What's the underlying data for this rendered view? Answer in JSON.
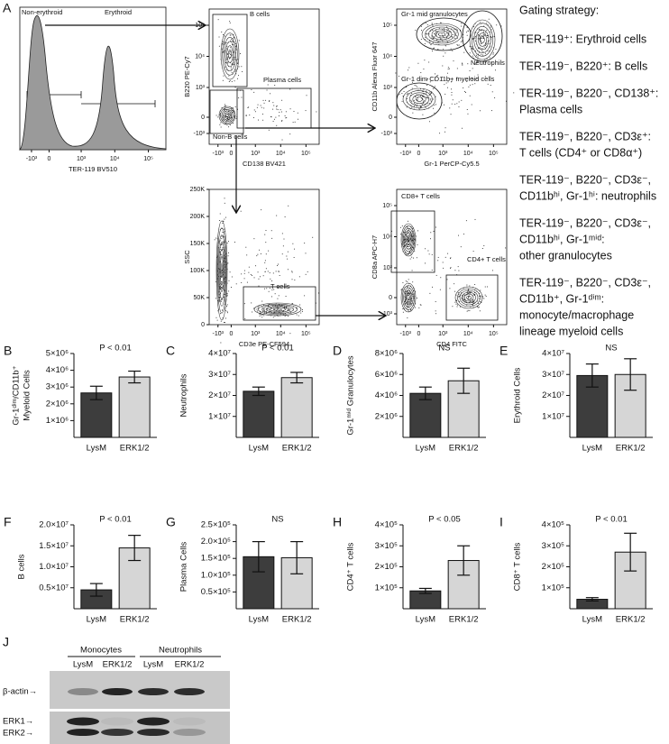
{
  "panel_a": {
    "label": "A",
    "histogram": {
      "xlabel": "TER-119 BV510",
      "gates": [
        "Non-erythroid",
        "Erythroid"
      ],
      "xticks": [
        "-10³",
        "0",
        "10³",
        "10⁴",
        "10⁵"
      ]
    },
    "b_cell_plot": {
      "xlabel": "CD138 BV421",
      "ylabel": "B220 PE-Cy7",
      "gates": [
        "B cells",
        "Plasma cells",
        "Non-B cells"
      ],
      "xticks": [
        "-10³",
        "0",
        "10³",
        "10⁴",
        "10⁵"
      ],
      "yticks": [
        "-10³",
        "0",
        "10³",
        "10⁴",
        "10⁵"
      ]
    },
    "myeloid_plot": {
      "xlabel": "Gr-1 PerCP-Cy5.5",
      "ylabel": "CD11b Alexa Fluor 647",
      "gates": [
        "Gr-1 mid granulocytes",
        "Neutrophils",
        "Gr-1 dim CD11b+ myeloid cells"
      ],
      "xticks": [
        "-10³",
        "0",
        "10³",
        "10⁴",
        "10⁵"
      ],
      "yticks": [
        "-10³",
        "0",
        "10³",
        "10⁴",
        "10⁵"
      ]
    },
    "t_cell_plot": {
      "xlabel": "CD3e PE-CF594",
      "ylabel": "SSC",
      "gates": [
        "T cells"
      ],
      "xticks": [
        "-10³",
        "0",
        "10³",
        "10⁴",
        "10⁵"
      ],
      "yticks": [
        "0",
        "50K",
        "100K",
        "150K",
        "200K",
        "250K"
      ]
    },
    "cd4_cd8_plot": {
      "xlabel": "CD4 FITC",
      "ylabel": "CD8a APC-H7",
      "gates": [
        "CD8+ T cells",
        "CD4+ T cells"
      ],
      "xticks": [
        "-10³",
        "0",
        "10³",
        "10⁴",
        "10⁵"
      ],
      "yticks": [
        "-10³",
        "0",
        "10³",
        "10⁴",
        "10⁵"
      ]
    },
    "gating_strategy": {
      "title": "Gating strategy:",
      "items": [
        [
          "TER-119⁺: Erythroid cells"
        ],
        [
          "TER-119⁻, B220⁺: B cells"
        ],
        [
          "TER-119⁻, B220⁻, CD138⁺:",
          "Plasma cells"
        ],
        [
          "TER-119⁻, B220⁻, CD3ε⁺:",
          "T cells (CD4⁺ or CD8α⁺)"
        ],
        [
          "TER-119⁻, B220⁻, CD3ε⁻,",
          "CD11bʰⁱ, Gr-1ʰⁱ: neutrophils"
        ],
        [
          "TER-119⁻, B220⁻, CD3ε⁻,",
          "CD11bʰⁱ, Gr-1ᵐⁱᵈ:",
          "other granulocytes"
        ],
        [
          "TER-119⁻, B220⁻, CD3ε⁻,",
          "CD11b⁺, Gr-1ᵈⁱᵐ:",
          "monocyte/macrophage",
          "lineage myeloid cells"
        ]
      ]
    }
  },
  "chart_data": [
    {
      "type": "bar",
      "label": "B",
      "ylabel": [
        "Gr-1ᵈⁱᵐ/CD11b⁺",
        "Myeloid Cells"
      ],
      "annotation": "P < 0.01",
      "categories": [
        "LysM",
        "ERK1/2"
      ],
      "values": [
        2650000,
        3600000
      ],
      "errors": [
        400000,
        350000
      ],
      "colors": [
        "#3d3d3d",
        "#d6d6d6"
      ],
      "ylim": [
        0,
        5000000
      ],
      "yticks": [
        {
          "value": 1000000,
          "label": "1×10⁶"
        },
        {
          "value": 2000000,
          "label": "2×10⁶"
        },
        {
          "value": 3000000,
          "label": "3×10⁶"
        },
        {
          "value": 4000000,
          "label": "4×10⁶"
        },
        {
          "value": 5000000,
          "label": "5×10⁶"
        }
      ]
    },
    {
      "type": "bar",
      "label": "C",
      "ylabel": [
        "Neutrophils"
      ],
      "annotation": "P < 0.01",
      "categories": [
        "LysM",
        "ERK1/2"
      ],
      "values": [
        22000000,
        28500000
      ],
      "errors": [
        2000000,
        2500000
      ],
      "colors": [
        "#3d3d3d",
        "#d6d6d6"
      ],
      "ylim": [
        0,
        40000000
      ],
      "yticks": [
        {
          "value": 10000000,
          "label": "1×10⁷"
        },
        {
          "value": 20000000,
          "label": "2×10⁷"
        },
        {
          "value": 30000000,
          "label": "3×10⁷"
        },
        {
          "value": 40000000,
          "label": "4×10⁷"
        }
      ]
    },
    {
      "type": "bar",
      "label": "D",
      "ylabel": [
        "Gr-1ᵐⁱᵈ Granulocytes"
      ],
      "annotation": "NS",
      "categories": [
        "LysM",
        "ERK1/2"
      ],
      "values": [
        4200000,
        5400000
      ],
      "errors": [
        600000,
        1200000
      ],
      "colors": [
        "#3d3d3d",
        "#d6d6d6"
      ],
      "ylim": [
        0,
        8000000
      ],
      "yticks": [
        {
          "value": 2000000,
          "label": "2×10⁶"
        },
        {
          "value": 4000000,
          "label": "4×10⁶"
        },
        {
          "value": 6000000,
          "label": "6×10⁶"
        },
        {
          "value": 8000000,
          "label": "8×10⁶"
        }
      ]
    },
    {
      "type": "bar",
      "label": "E",
      "ylabel": [
        "Erythroid Cells"
      ],
      "annotation": "NS",
      "categories": [
        "LysM",
        "ERK1/2"
      ],
      "values": [
        29500000,
        30000000
      ],
      "errors": [
        5500000,
        7500000
      ],
      "colors": [
        "#3d3d3d",
        "#d6d6d6"
      ],
      "ylim": [
        0,
        40000000
      ],
      "yticks": [
        {
          "value": 10000000,
          "label": "1×10⁷"
        },
        {
          "value": 20000000,
          "label": "2×10⁷"
        },
        {
          "value": 30000000,
          "label": "3×10⁷"
        },
        {
          "value": 40000000,
          "label": "4×10⁷"
        }
      ]
    },
    {
      "type": "bar",
      "label": "F",
      "ylabel": [
        "B cells"
      ],
      "annotation": "P < 0.01",
      "categories": [
        "LysM",
        "ERK1/2"
      ],
      "values": [
        4500000,
        14500000
      ],
      "errors": [
        1500000,
        3000000
      ],
      "colors": [
        "#3d3d3d",
        "#d6d6d6"
      ],
      "ylim": [
        0,
        20000000
      ],
      "yticks": [
        {
          "value": 5000000,
          "label": "0.5×10⁷"
        },
        {
          "value": 10000000,
          "label": "1.0×10⁷"
        },
        {
          "value": 15000000,
          "label": "1.5×10⁷"
        },
        {
          "value": 20000000,
          "label": "2.0×10⁷"
        }
      ]
    },
    {
      "type": "bar",
      "label": "G",
      "ylabel": [
        "Plasma Cells"
      ],
      "annotation": "NS",
      "categories": [
        "LysM",
        "ERK1/2"
      ],
      "values": [
        155000,
        152000
      ],
      "errors": [
        45000,
        48000
      ],
      "colors": [
        "#3d3d3d",
        "#d6d6d6"
      ],
      "ylim": [
        0,
        250000
      ],
      "yticks": [
        {
          "value": 50000,
          "label": "0.5×10⁵"
        },
        {
          "value": 100000,
          "label": "1.0×10⁵"
        },
        {
          "value": 150000,
          "label": "1.5×10⁵"
        },
        {
          "value": 200000,
          "label": "2.0×10⁵"
        },
        {
          "value": 250000,
          "label": "2.5×10⁵"
        }
      ]
    },
    {
      "type": "bar",
      "label": "H",
      "ylabel": [
        "CD4⁺ T cells"
      ],
      "annotation": "P < 0.05",
      "categories": [
        "LysM",
        "ERK1/2"
      ],
      "values": [
        85000,
        230000
      ],
      "errors": [
        12000,
        70000
      ],
      "colors": [
        "#3d3d3d",
        "#d6d6d6"
      ],
      "ylim": [
        0,
        400000
      ],
      "yticks": [
        {
          "value": 100000,
          "label": "1×10⁵"
        },
        {
          "value": 200000,
          "label": "2×10⁵"
        },
        {
          "value": 300000,
          "label": "3×10⁵"
        },
        {
          "value": 400000,
          "label": "4×10⁵"
        }
      ]
    },
    {
      "type": "bar",
      "label": "I",
      "ylabel": [
        "CD8⁺ T cells"
      ],
      "annotation": "P < 0.01",
      "categories": [
        "LysM",
        "ERK1/2"
      ],
      "values": [
        45000,
        270000
      ],
      "errors": [
        8000,
        90000
      ],
      "colors": [
        "#3d3d3d",
        "#d6d6d6"
      ],
      "ylim": [
        0,
        400000
      ],
      "yticks": [
        {
          "value": 100000,
          "label": "1×10⁵"
        },
        {
          "value": 200000,
          "label": "2×10⁵"
        },
        {
          "value": 300000,
          "label": "3×10⁵"
        },
        {
          "value": 400000,
          "label": "4×10⁵"
        }
      ]
    }
  ],
  "panel_j": {
    "label": "J",
    "groups": [
      "Monocytes",
      "Neutrophils"
    ],
    "lanes": [
      "LysM",
      "ERK1/2",
      "LysM",
      "ERK1/2"
    ],
    "rows": [
      "β-actin→",
      "ERK1→",
      "ERK2→"
    ]
  }
}
